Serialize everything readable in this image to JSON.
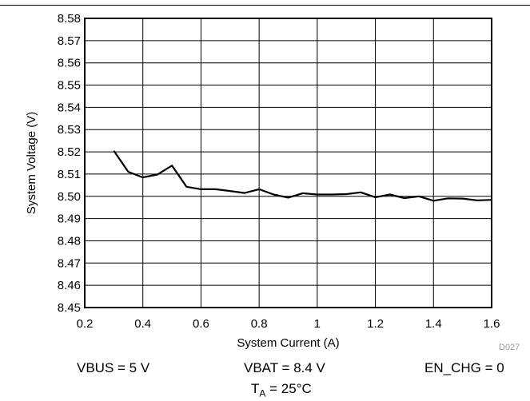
{
  "chart_data": {
    "type": "line",
    "title": "",
    "xlabel": "System Current (A)",
    "ylabel": "System Voltage (V)",
    "xlim": [
      0.2,
      1.6
    ],
    "ylim": [
      8.45,
      8.58
    ],
    "xticks": [
      "0.2",
      "0.4",
      "0.6",
      "0.8",
      "1",
      "1.2",
      "1.4",
      "1.6"
    ],
    "yticks": [
      "8.45",
      "8.46",
      "8.47",
      "8.48",
      "8.49",
      "8.50",
      "8.51",
      "8.52",
      "8.53",
      "8.54",
      "8.55",
      "8.56",
      "8.57",
      "8.58"
    ],
    "grid": true,
    "series": [
      {
        "x": [
          0.3,
          0.35,
          0.4,
          0.45,
          0.5,
          0.55,
          0.6,
          0.65,
          0.7,
          0.75,
          0.8,
          0.85,
          0.9,
          0.95,
          1.0,
          1.05,
          1.1,
          1.15,
          1.2,
          1.25,
          1.3,
          1.35,
          1.4,
          1.45,
          1.5,
          1.55,
          1.6
        ],
        "y": [
          8.5205,
          8.511,
          8.5085,
          8.5098,
          8.5138,
          8.5043,
          8.5032,
          8.5032,
          8.5024,
          8.5015,
          8.5032,
          8.5008,
          8.4994,
          8.5014,
          8.5008,
          8.5008,
          8.501,
          8.5018,
          8.4996,
          8.5008,
          8.4992,
          8.5,
          8.498,
          8.4991,
          8.499,
          8.4982,
          8.4984
        ]
      }
    ],
    "conditions": {
      "vbus": "VBUS = 5 V",
      "vbat": "VBAT = 8.4 V",
      "en_chg": "EN_CHG = 0",
      "ta_symbol": "T",
      "ta_sub": "A",
      "ta_value": " = 25°C"
    },
    "figure_id": "D027"
  }
}
